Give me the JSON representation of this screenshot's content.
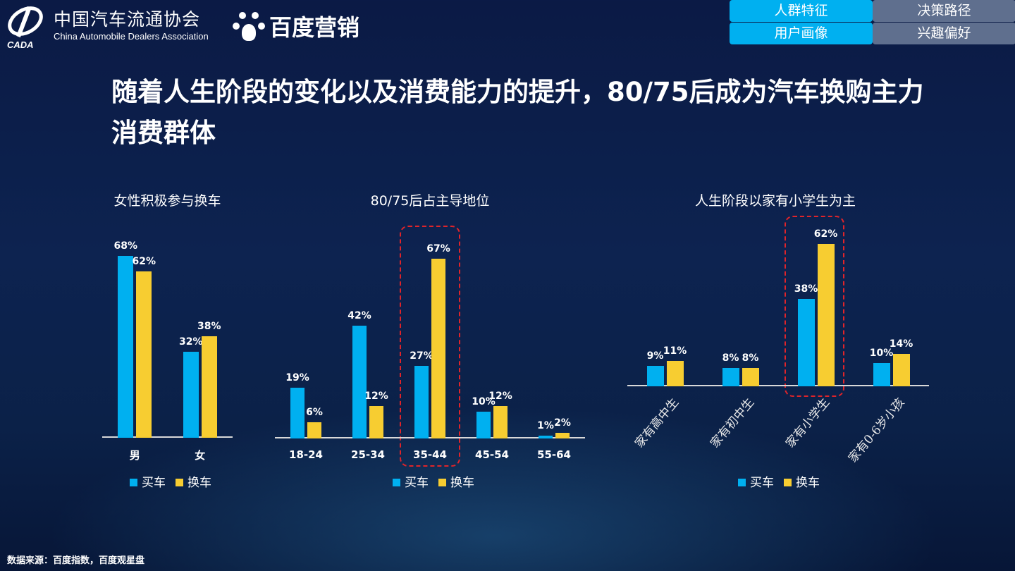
{
  "header": {
    "cada_logo_text": "CADA",
    "association_cn": "中国汽车流通协会",
    "association_en": "China Automobile Dealers Association",
    "baidu_brand": "百度营销"
  },
  "nav": [
    {
      "label": "人群特征",
      "active": true
    },
    {
      "label": "决策路径",
      "active": false
    },
    {
      "label": "用户画像",
      "active": true
    },
    {
      "label": "兴趣偏好",
      "active": false
    }
  ],
  "title": "随着人生阶段的变化以及消费能力的提升，80/75后成为汽车换购主力消费群体",
  "colors": {
    "buy": "#00b0f0",
    "replace": "#f7cd31",
    "highlight": "#e0242a"
  },
  "legend": {
    "buy": "买车",
    "replace": "换车"
  },
  "chart_data": [
    {
      "type": "bar",
      "title": "女性积极参与换车",
      "categories": [
        "男",
        "女"
      ],
      "series": [
        {
          "name": "买车",
          "values": [
            68,
            32
          ]
        },
        {
          "name": "换车",
          "values": [
            62,
            38
          ]
        }
      ],
      "unit": "%"
    },
    {
      "type": "bar",
      "title": "80/75后占主导地位",
      "categories": [
        "18-24",
        "25-34",
        "35-44",
        "45-54",
        "55-64"
      ],
      "series": [
        {
          "name": "买车",
          "values": [
            19,
            42,
            27,
            10,
            1
          ]
        },
        {
          "name": "换车",
          "values": [
            6,
            12,
            67,
            12,
            2
          ]
        }
      ],
      "unit": "%",
      "highlighted_category": "35-44"
    },
    {
      "type": "bar",
      "title": "人生阶段以家有小学生为主",
      "categories": [
        "家有高中生",
        "家有初中生",
        "家有小学生",
        "家有0-6岁小孩"
      ],
      "series": [
        {
          "name": "买车",
          "values": [
            9,
            8,
            38,
            10
          ]
        },
        {
          "name": "换车",
          "values": [
            11,
            8,
            62,
            14
          ]
        }
      ],
      "unit": "%",
      "highlighted_category": "家有小学生"
    }
  ],
  "source": "数据来源：百度指数，百度观星盘"
}
